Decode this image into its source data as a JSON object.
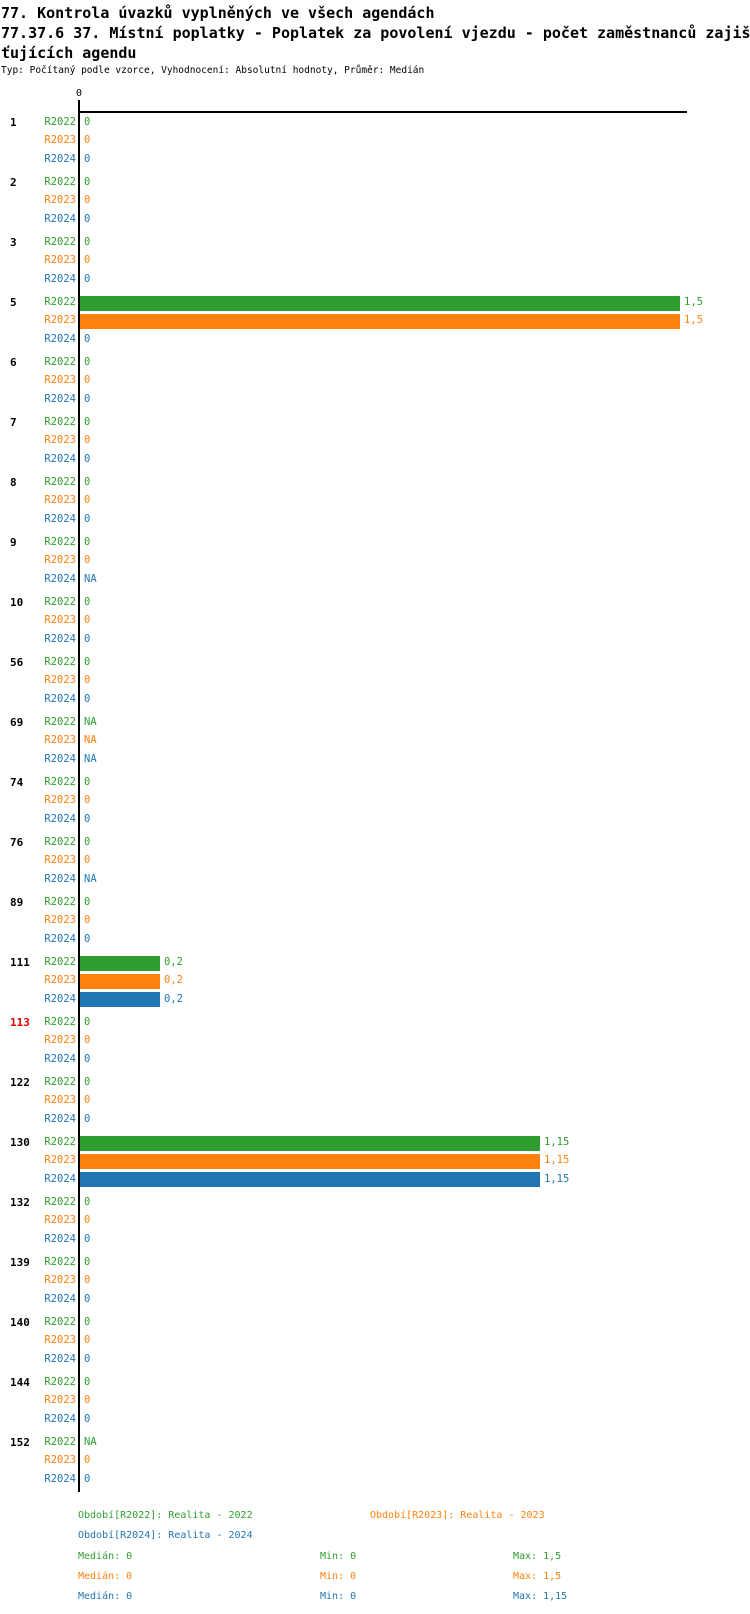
{
  "header": {
    "title": "77. Kontrola úvazků vyplněných ve všech agendách",
    "subtitle": "77.37.6 37. Místní poplatky - Poplatek za povolení vjezdu - počet zaměstnanců zajišťujících agendu",
    "meta": "Typ: Počítaný podle vzorce, Vyhodnocení: Absolutní hodnoty, Průměr: Medián"
  },
  "colors": {
    "R2022": "#2E9E2E",
    "R2023": "#FF810D",
    "R2024": "#2176B4",
    "alert": "#E10000",
    "axis": "#000000"
  },
  "chart_data": {
    "type": "bar",
    "orientation": "horizontal",
    "title": "77. Kontrola úvazků vyplněných ve všech agendách",
    "xlabel": "",
    "ylabel": "",
    "xlim": [
      0,
      1.52
    ],
    "x_tick_labels": [
      "0"
    ],
    "grid": false,
    "legend_position": "bottom",
    "series_names": [
      "R2022",
      "R2023",
      "R2024"
    ],
    "groups": [
      {
        "label": "1",
        "alert": false,
        "values": [
          0,
          0,
          0
        ],
        "display": [
          "0",
          "0",
          "0"
        ]
      },
      {
        "label": "2",
        "alert": false,
        "values": [
          0,
          0,
          0
        ],
        "display": [
          "0",
          "0",
          "0"
        ]
      },
      {
        "label": "3",
        "alert": false,
        "values": [
          0,
          0,
          0
        ],
        "display": [
          "0",
          "0",
          "0"
        ]
      },
      {
        "label": "5",
        "alert": false,
        "values": [
          1.5,
          1.5,
          0
        ],
        "display": [
          "1,5",
          "1,5",
          "0"
        ]
      },
      {
        "label": "6",
        "alert": false,
        "values": [
          0,
          0,
          0
        ],
        "display": [
          "0",
          "0",
          "0"
        ]
      },
      {
        "label": "7",
        "alert": false,
        "values": [
          0,
          0,
          0
        ],
        "display": [
          "0",
          "0",
          "0"
        ]
      },
      {
        "label": "8",
        "alert": false,
        "values": [
          0,
          0,
          0
        ],
        "display": [
          "0",
          "0",
          "0"
        ]
      },
      {
        "label": "9",
        "alert": false,
        "values": [
          0,
          0,
          null
        ],
        "display": [
          "0",
          "0",
          "NA"
        ]
      },
      {
        "label": "10",
        "alert": false,
        "values": [
          0,
          0,
          0
        ],
        "display": [
          "0",
          "0",
          "0"
        ]
      },
      {
        "label": "56",
        "alert": false,
        "values": [
          0,
          0,
          0
        ],
        "display": [
          "0",
          "0",
          "0"
        ]
      },
      {
        "label": "69",
        "alert": false,
        "values": [
          null,
          null,
          null
        ],
        "display": [
          "NA",
          "NA",
          "NA"
        ]
      },
      {
        "label": "74",
        "alert": false,
        "values": [
          0,
          0,
          0
        ],
        "display": [
          "0",
          "0",
          "0"
        ]
      },
      {
        "label": "76",
        "alert": false,
        "values": [
          0,
          0,
          null
        ],
        "display": [
          "0",
          "0",
          "NA"
        ]
      },
      {
        "label": "89",
        "alert": false,
        "values": [
          0,
          0,
          0
        ],
        "display": [
          "0",
          "0",
          "0"
        ]
      },
      {
        "label": "111",
        "alert": false,
        "values": [
          0.2,
          0.2,
          0.2
        ],
        "display": [
          "0,2",
          "0,2",
          "0,2"
        ]
      },
      {
        "label": "113",
        "alert": true,
        "values": [
          0,
          0,
          0
        ],
        "display": [
          "0",
          "0",
          "0"
        ]
      },
      {
        "label": "122",
        "alert": false,
        "values": [
          0,
          0,
          0
        ],
        "display": [
          "0",
          "0",
          "0"
        ]
      },
      {
        "label": "130",
        "alert": false,
        "values": [
          1.15,
          1.15,
          1.15
        ],
        "display": [
          "1,15",
          "1,15",
          "1,15"
        ]
      },
      {
        "label": "132",
        "alert": false,
        "values": [
          0,
          0,
          0
        ],
        "display": [
          "0",
          "0",
          "0"
        ]
      },
      {
        "label": "139",
        "alert": false,
        "values": [
          0,
          0,
          0
        ],
        "display": [
          "0",
          "0",
          "0"
        ]
      },
      {
        "label": "140",
        "alert": false,
        "values": [
          0,
          0,
          0
        ],
        "display": [
          "0",
          "0",
          "0"
        ]
      },
      {
        "label": "144",
        "alert": false,
        "values": [
          0,
          0,
          0
        ],
        "display": [
          "0",
          "0",
          "0"
        ]
      },
      {
        "label": "152",
        "alert": false,
        "values": [
          null,
          0,
          0
        ],
        "display": [
          "NA",
          "0",
          "0"
        ]
      }
    ]
  },
  "legend": {
    "periods": [
      {
        "series": "R2022",
        "text": "Období[R2022]: Realita - 2022"
      },
      {
        "series": "R2023",
        "text": "Období[R2023]: Realita - 2023"
      },
      {
        "series": "R2024",
        "text": "Období[R2024]: Realita - 2024"
      }
    ],
    "stats": [
      {
        "series": "R2022",
        "median": "Medián: 0",
        "min": "Min: 0",
        "max": "Max: 1,5"
      },
      {
        "series": "R2023",
        "median": "Medián: 0",
        "min": "Min: 0",
        "max": "Max: 1,5"
      },
      {
        "series": "R2024",
        "median": "Medián: 0",
        "min": "Min: 0",
        "max": "Max: 1,15"
      }
    ]
  }
}
